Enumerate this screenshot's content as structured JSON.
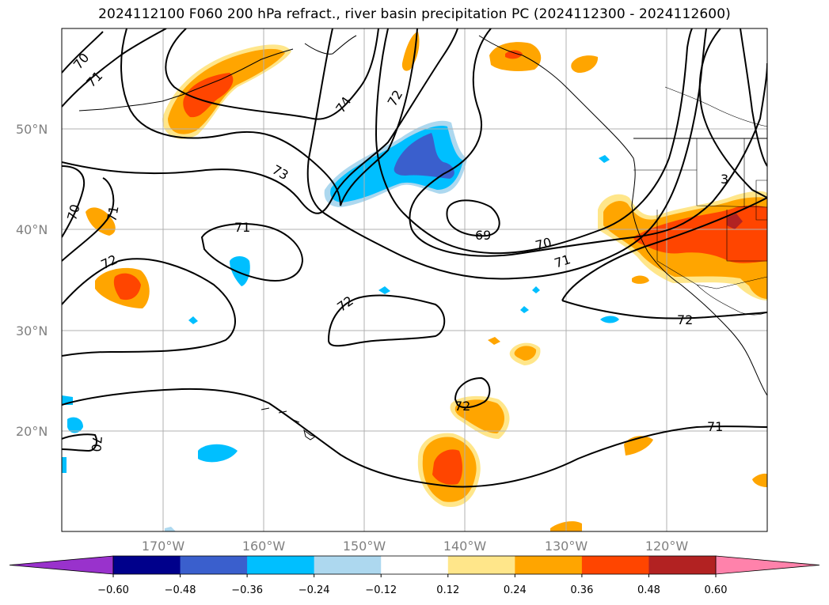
{
  "title": "2024112100 F060 200 hPa refract., river basin precipitation PC (2024112300 - 2024112600)",
  "map": {
    "lon_ticks": [
      "170°W",
      "160°W",
      "150°W",
      "140°W",
      "130°W",
      "120°W"
    ],
    "lat_ticks": [
      "50°N",
      "40°N",
      "30°N",
      "20°N"
    ],
    "contour_labels": [
      "70",
      "71",
      "74",
      "72",
      "73",
      "70",
      "71",
      "71",
      "72",
      "69",
      "70",
      "71",
      "72",
      "72",
      "72",
      "71",
      "70",
      "3"
    ]
  },
  "colorbar": {
    "ticks": [
      "−0.60",
      "−0.48",
      "−0.36",
      "−0.24",
      "−0.12",
      "0.12",
      "0.24",
      "0.36",
      "0.48",
      "0.60"
    ],
    "colors": [
      "#9932cc",
      "#00008b",
      "#3a5fcd",
      "#00bfff",
      "#add8ef",
      "#ffffff",
      "#ffe68a",
      "#ffa500",
      "#ff4500",
      "#b22222",
      "#ff82ab"
    ]
  },
  "palette": {
    "orange": "#ffa500",
    "red_orange": "#ff4500",
    "yellow": "#ffe68a",
    "light_blue": "#add8ef",
    "sky_blue": "#00bfff",
    "royal_blue": "#3a5fcd"
  }
}
